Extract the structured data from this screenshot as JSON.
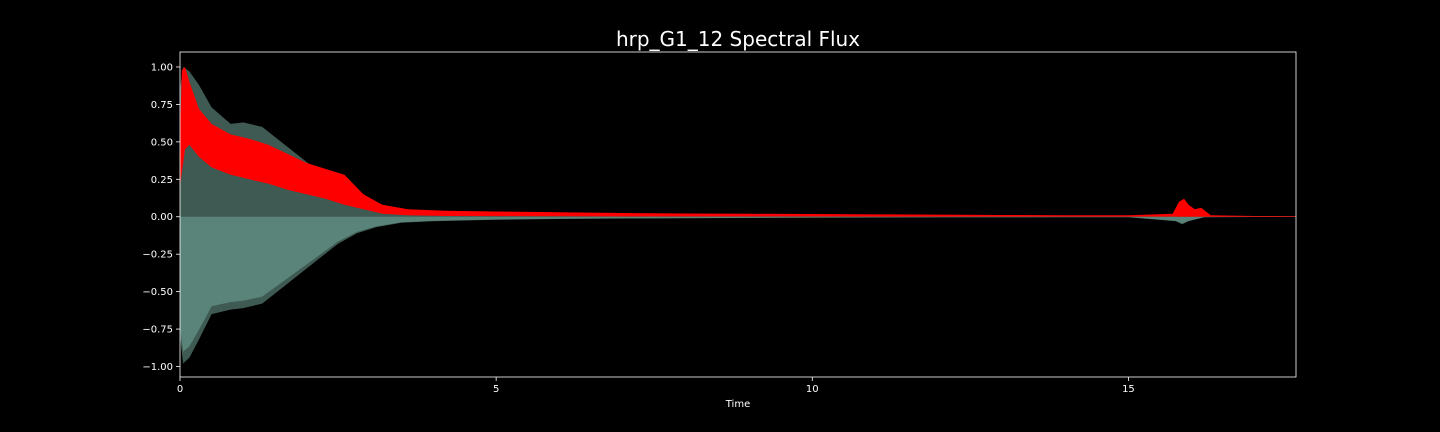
{
  "chart_data": {
    "type": "area",
    "title": "hrp_G1_12 Spectral Flux",
    "xlabel": "Time",
    "ylabel": "",
    "xlim": [
      0,
      17.65
    ],
    "ylim": [
      -1.07,
      1.1
    ],
    "x_ticks": [
      0,
      5,
      10,
      15
    ],
    "x_tick_labels": [
      "0",
      "5",
      "10",
      "15"
    ],
    "y_ticks": [
      1.0,
      0.75,
      0.5,
      0.25,
      0.0,
      -0.25,
      -0.5,
      -0.75,
      -1.0
    ],
    "y_tick_labels": [
      "1.00",
      "0.75",
      "0.50",
      "0.25",
      "0.00",
      "−0.25",
      "−0.50",
      "−0.75",
      "−1.00"
    ],
    "grid": false,
    "legend": "none",
    "colors": {
      "background": "#000000",
      "axes_frame": "#ffffff",
      "waveform_dark": "#3e5a52",
      "waveform_light": "#5f8c80",
      "spectral_flux": "#ff0000"
    },
    "series": [
      {
        "kind": "waveform_envelope",
        "x": [
          0,
          0.05,
          0.15,
          0.3,
          0.5,
          0.8,
          1.0,
          1.3,
          1.6,
          1.9,
          2.2,
          2.5,
          2.8,
          3.1,
          3.5,
          4.0,
          5.0,
          6.0,
          7.0,
          8.0,
          9.0,
          10.0,
          11.0,
          12.0,
          13.0,
          14.0,
          15.0,
          15.75,
          15.85,
          15.95,
          16.2,
          17.0,
          17.65
        ],
        "upper": [
          0.85,
          1.0,
          0.97,
          0.88,
          0.73,
          0.62,
          0.63,
          0.6,
          0.5,
          0.4,
          0.3,
          0.19,
          0.12,
          0.07,
          0.04,
          0.03,
          0.02,
          0.015,
          0.012,
          0.01,
          0.008,
          0.006,
          0.005,
          0.004,
          0.004,
          0.003,
          0.003,
          0.02,
          0.04,
          0.02,
          0.003,
          0.002,
          0.002
        ],
        "lower": [
          -0.8,
          -0.98,
          -0.94,
          -0.82,
          -0.65,
          -0.62,
          -0.61,
          -0.58,
          -0.48,
          -0.38,
          -0.28,
          -0.18,
          -0.11,
          -0.07,
          -0.04,
          -0.03,
          -0.02,
          -0.015,
          -0.012,
          -0.01,
          -0.008,
          -0.006,
          -0.005,
          -0.004,
          -0.004,
          -0.003,
          -0.003,
          -0.03,
          -0.05,
          -0.03,
          -0.003,
          -0.002,
          -0.002
        ]
      },
      {
        "kind": "spectral_flux",
        "x": [
          0,
          0.03,
          0.08,
          0.15,
          0.3,
          0.5,
          0.8,
          1.1,
          1.4,
          1.7,
          2.0,
          2.3,
          2.6,
          2.9,
          3.2,
          3.6,
          4.2,
          5.0,
          6.0,
          7.0,
          8.0,
          9.0,
          10.0,
          11.0,
          12.0,
          13.0,
          14.0,
          15.0,
          15.7,
          15.8,
          15.88,
          15.95,
          16.05,
          16.15,
          16.3,
          17.0,
          17.65
        ],
        "upper": [
          0.55,
          0.98,
          1.0,
          0.9,
          0.72,
          0.62,
          0.55,
          0.52,
          0.48,
          0.42,
          0.36,
          0.32,
          0.28,
          0.15,
          0.08,
          0.05,
          0.04,
          0.035,
          0.03,
          0.025,
          0.022,
          0.02,
          0.018,
          0.016,
          0.014,
          0.012,
          0.01,
          0.01,
          0.02,
          0.1,
          0.12,
          0.08,
          0.05,
          0.06,
          0.01,
          0.005,
          0.004
        ],
        "lower": [
          0.2,
          0.3,
          0.45,
          0.48,
          0.4,
          0.33,
          0.28,
          0.25,
          0.22,
          0.18,
          0.15,
          0.12,
          0.08,
          0.05,
          0.02,
          0.01,
          0.005,
          0.004,
          0.003,
          0.002,
          0.002,
          0.002,
          0.002,
          0.001,
          0.001,
          0.001,
          0.001,
          0.001,
          0.001,
          0.0,
          0.0,
          0.0,
          0.0,
          0.0,
          0.0,
          0.0,
          0.0
        ]
      }
    ]
  }
}
